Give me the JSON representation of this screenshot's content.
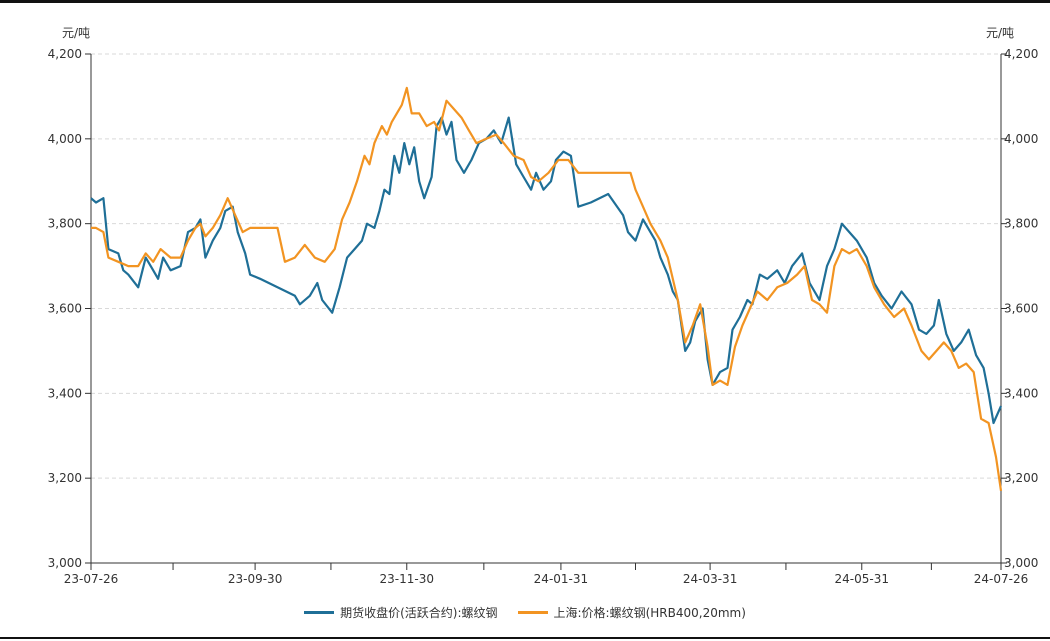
{
  "chart_data": {
    "type": "line",
    "y_unit_left": "元/吨",
    "y_unit_right": "元/吨",
    "ylim": [
      3000,
      4200
    ],
    "y_ticks": [
      "3,000",
      "3,200",
      "3,400",
      "3,600",
      "3,800",
      "4,000",
      "4,200"
    ],
    "y_tick_values": [
      3000,
      3200,
      3400,
      3600,
      3800,
      4000,
      4200
    ],
    "x_tick_labels": [
      "23-07-26",
      "23-09-30",
      "23-11-30",
      "24-01-31",
      "24-03-31",
      "24-05-31",
      "24-07-26"
    ],
    "x_tick_dates": [
      "2023-07-26",
      "2023-09-30",
      "2023-11-30",
      "2024-01-31",
      "2024-03-31",
      "2024-05-31",
      "2024-07-26"
    ],
    "xlim": [
      "2023-07-26",
      "2024-07-26"
    ],
    "grid": "horizontal dashed",
    "legend_position": "bottom",
    "series": [
      {
        "name": "期货收盘价(活跃合约):螺纹钢",
        "color": "#1f6f97",
        "points": [
          [
            "2023-07-26",
            3860
          ],
          [
            "2023-07-28",
            3850
          ],
          [
            "2023-07-31",
            3860
          ],
          [
            "2023-08-02",
            3740
          ],
          [
            "2023-08-06",
            3730
          ],
          [
            "2023-08-08",
            3690
          ],
          [
            "2023-08-10",
            3680
          ],
          [
            "2023-08-14",
            3650
          ],
          [
            "2023-08-17",
            3720
          ],
          [
            "2023-08-20",
            3690
          ],
          [
            "2023-08-22",
            3670
          ],
          [
            "2023-08-24",
            3720
          ],
          [
            "2023-08-27",
            3690
          ],
          [
            "2023-08-31",
            3700
          ],
          [
            "2023-09-03",
            3780
          ],
          [
            "2023-09-06",
            3790
          ],
          [
            "2023-09-08",
            3810
          ],
          [
            "2023-09-10",
            3720
          ],
          [
            "2023-09-13",
            3760
          ],
          [
            "2023-09-16",
            3790
          ],
          [
            "2023-09-18",
            3830
          ],
          [
            "2023-09-21",
            3840
          ],
          [
            "2023-09-23",
            3780
          ],
          [
            "2023-09-26",
            3730
          ],
          [
            "2023-09-28",
            3680
          ],
          [
            "2023-10-02",
            3670
          ],
          [
            "2023-10-09",
            3650
          ],
          [
            "2023-10-16",
            3630
          ],
          [
            "2023-10-18",
            3610
          ],
          [
            "2023-10-22",
            3630
          ],
          [
            "2023-10-25",
            3660
          ],
          [
            "2023-10-27",
            3620
          ],
          [
            "2023-10-31",
            3590
          ],
          [
            "2023-11-03",
            3650
          ],
          [
            "2023-11-06",
            3720
          ],
          [
            "2023-11-09",
            3740
          ],
          [
            "2023-11-12",
            3760
          ],
          [
            "2023-11-14",
            3800
          ],
          [
            "2023-11-17",
            3790
          ],
          [
            "2023-11-19",
            3830
          ],
          [
            "2023-11-21",
            3880
          ],
          [
            "2023-11-23",
            3870
          ],
          [
            "2023-11-25",
            3960
          ],
          [
            "2023-11-27",
            3920
          ],
          [
            "2023-11-29",
            3990
          ],
          [
            "2023-12-01",
            3940
          ],
          [
            "2023-12-03",
            3980
          ],
          [
            "2023-12-05",
            3900
          ],
          [
            "2023-12-07",
            3860
          ],
          [
            "2023-12-10",
            3910
          ],
          [
            "2023-12-12",
            4030
          ],
          [
            "2023-12-14",
            4050
          ],
          [
            "2023-12-16",
            4010
          ],
          [
            "2023-12-18",
            4040
          ],
          [
            "2023-12-20",
            3950
          ],
          [
            "2023-12-23",
            3920
          ],
          [
            "2023-12-26",
            3950
          ],
          [
            "2023-12-29",
            3990
          ],
          [
            "2024-01-01",
            4000
          ],
          [
            "2024-01-04",
            4020
          ],
          [
            "2024-01-07",
            3990
          ],
          [
            "2024-01-10",
            4050
          ],
          [
            "2024-01-13",
            3940
          ],
          [
            "2024-01-16",
            3910
          ],
          [
            "2024-01-19",
            3880
          ],
          [
            "2024-01-21",
            3920
          ],
          [
            "2024-01-24",
            3880
          ],
          [
            "2024-01-27",
            3900
          ],
          [
            "2024-01-29",
            3950
          ],
          [
            "2024-02-01",
            3970
          ],
          [
            "2024-02-04",
            3960
          ],
          [
            "2024-02-07",
            3840
          ],
          [
            "2024-02-12",
            3850
          ],
          [
            "2024-02-19",
            3870
          ],
          [
            "2024-02-25",
            3820
          ],
          [
            "2024-02-27",
            3780
          ],
          [
            "2024-03-01",
            3760
          ],
          [
            "2024-03-04",
            3810
          ],
          [
            "2024-03-07",
            3780
          ],
          [
            "2024-03-09",
            3760
          ],
          [
            "2024-03-11",
            3720
          ],
          [
            "2024-03-14",
            3680
          ],
          [
            "2024-03-16",
            3640
          ],
          [
            "2024-03-18",
            3620
          ],
          [
            "2024-03-21",
            3500
          ],
          [
            "2024-03-23",
            3520
          ],
          [
            "2024-03-25",
            3570
          ],
          [
            "2024-03-28",
            3600
          ],
          [
            "2024-03-30",
            3480
          ],
          [
            "2024-04-01",
            3420
          ],
          [
            "2024-04-04",
            3450
          ],
          [
            "2024-04-07",
            3460
          ],
          [
            "2024-04-09",
            3550
          ],
          [
            "2024-04-12",
            3580
          ],
          [
            "2024-04-15",
            3620
          ],
          [
            "2024-04-17",
            3610
          ],
          [
            "2024-04-20",
            3680
          ],
          [
            "2024-04-23",
            3670
          ],
          [
            "2024-04-27",
            3690
          ],
          [
            "2024-04-30",
            3660
          ],
          [
            "2024-05-03",
            3700
          ],
          [
            "2024-05-07",
            3730
          ],
          [
            "2024-05-10",
            3660
          ],
          [
            "2024-05-14",
            3620
          ],
          [
            "2024-05-17",
            3700
          ],
          [
            "2024-05-20",
            3740
          ],
          [
            "2024-05-23",
            3800
          ],
          [
            "2024-05-26",
            3780
          ],
          [
            "2024-05-29",
            3760
          ],
          [
            "2024-06-02",
            3720
          ],
          [
            "2024-06-05",
            3660
          ],
          [
            "2024-06-08",
            3630
          ],
          [
            "2024-06-12",
            3600
          ],
          [
            "2024-06-16",
            3640
          ],
          [
            "2024-06-20",
            3610
          ],
          [
            "2024-06-23",
            3550
          ],
          [
            "2024-06-26",
            3540
          ],
          [
            "2024-06-29",
            3560
          ],
          [
            "2024-07-01",
            3620
          ],
          [
            "2024-07-04",
            3540
          ],
          [
            "2024-07-07",
            3500
          ],
          [
            "2024-07-10",
            3520
          ],
          [
            "2024-07-13",
            3550
          ],
          [
            "2024-07-16",
            3490
          ],
          [
            "2024-07-19",
            3460
          ],
          [
            "2024-07-21",
            3400
          ],
          [
            "2024-07-23",
            3330
          ],
          [
            "2024-07-26",
            3370
          ]
        ]
      },
      {
        "name": "上海:价格:螺纹钢(HRB400,20mm)",
        "color": "#f29422",
        "points": [
          [
            "2023-07-26",
            3790
          ],
          [
            "2023-07-28",
            3790
          ],
          [
            "2023-07-31",
            3780
          ],
          [
            "2023-08-02",
            3720
          ],
          [
            "2023-08-06",
            3710
          ],
          [
            "2023-08-10",
            3700
          ],
          [
            "2023-08-14",
            3700
          ],
          [
            "2023-08-17",
            3730
          ],
          [
            "2023-08-20",
            3710
          ],
          [
            "2023-08-23",
            3740
          ],
          [
            "2023-08-27",
            3720
          ],
          [
            "2023-08-31",
            3720
          ],
          [
            "2023-09-03",
            3760
          ],
          [
            "2023-09-06",
            3790
          ],
          [
            "2023-09-08",
            3800
          ],
          [
            "2023-09-10",
            3770
          ],
          [
            "2023-09-13",
            3790
          ],
          [
            "2023-09-16",
            3820
          ],
          [
            "2023-09-19",
            3860
          ],
          [
            "2023-09-22",
            3820
          ],
          [
            "2023-09-25",
            3780
          ],
          [
            "2023-09-28",
            3790
          ],
          [
            "2023-10-02",
            3790
          ],
          [
            "2023-10-09",
            3790
          ],
          [
            "2023-10-12",
            3710
          ],
          [
            "2023-10-16",
            3720
          ],
          [
            "2023-10-20",
            3750
          ],
          [
            "2023-10-24",
            3720
          ],
          [
            "2023-10-28",
            3710
          ],
          [
            "2023-11-01",
            3740
          ],
          [
            "2023-11-04",
            3810
          ],
          [
            "2023-11-07",
            3850
          ],
          [
            "2023-11-10",
            3900
          ],
          [
            "2023-11-13",
            3960
          ],
          [
            "2023-11-15",
            3940
          ],
          [
            "2023-11-17",
            3990
          ],
          [
            "2023-11-20",
            4030
          ],
          [
            "2023-11-22",
            4010
          ],
          [
            "2023-11-24",
            4040
          ],
          [
            "2023-11-26",
            4060
          ],
          [
            "2023-11-28",
            4080
          ],
          [
            "2023-11-30",
            4120
          ],
          [
            "2023-12-02",
            4060
          ],
          [
            "2023-12-05",
            4060
          ],
          [
            "2023-12-08",
            4030
          ],
          [
            "2023-12-11",
            4040
          ],
          [
            "2023-12-13",
            4020
          ],
          [
            "2023-12-16",
            4090
          ],
          [
            "2023-12-19",
            4070
          ],
          [
            "2023-12-22",
            4050
          ],
          [
            "2023-12-25",
            4020
          ],
          [
            "2023-12-28",
            3990
          ],
          [
            "2024-01-01",
            4000
          ],
          [
            "2024-01-05",
            4010
          ],
          [
            "2024-01-08",
            3990
          ],
          [
            "2024-01-12",
            3960
          ],
          [
            "2024-01-16",
            3950
          ],
          [
            "2024-01-19",
            3910
          ],
          [
            "2024-01-22",
            3900
          ],
          [
            "2024-01-26",
            3920
          ],
          [
            "2024-01-30",
            3950
          ],
          [
            "2024-02-03",
            3950
          ],
          [
            "2024-02-07",
            3920
          ],
          [
            "2024-02-14",
            3920
          ],
          [
            "2024-02-21",
            3920
          ],
          [
            "2024-02-28",
            3920
          ],
          [
            "2024-03-01",
            3880
          ],
          [
            "2024-03-04",
            3840
          ],
          [
            "2024-03-07",
            3800
          ],
          [
            "2024-03-11",
            3760
          ],
          [
            "2024-03-14",
            3720
          ],
          [
            "2024-03-18",
            3620
          ],
          [
            "2024-03-21",
            3520
          ],
          [
            "2024-03-24",
            3560
          ],
          [
            "2024-03-27",
            3610
          ],
          [
            "2024-03-30",
            3510
          ],
          [
            "2024-04-01",
            3420
          ],
          [
            "2024-04-04",
            3430
          ],
          [
            "2024-04-07",
            3420
          ],
          [
            "2024-04-10",
            3510
          ],
          [
            "2024-04-13",
            3560
          ],
          [
            "2024-04-16",
            3600
          ],
          [
            "2024-04-19",
            3640
          ],
          [
            "2024-04-23",
            3620
          ],
          [
            "2024-04-27",
            3650
          ],
          [
            "2024-05-01",
            3660
          ],
          [
            "2024-05-05",
            3680
          ],
          [
            "2024-05-08",
            3700
          ],
          [
            "2024-05-11",
            3620
          ],
          [
            "2024-05-14",
            3610
          ],
          [
            "2024-05-17",
            3590
          ],
          [
            "2024-05-20",
            3700
          ],
          [
            "2024-05-23",
            3740
          ],
          [
            "2024-05-26",
            3730
          ],
          [
            "2024-05-29",
            3740
          ],
          [
            "2024-06-02",
            3700
          ],
          [
            "2024-06-05",
            3650
          ],
          [
            "2024-06-09",
            3610
          ],
          [
            "2024-06-13",
            3580
          ],
          [
            "2024-06-17",
            3600
          ],
          [
            "2024-06-20",
            3560
          ],
          [
            "2024-06-24",
            3500
          ],
          [
            "2024-06-27",
            3480
          ],
          [
            "2024-06-30",
            3500
          ],
          [
            "2024-07-03",
            3520
          ],
          [
            "2024-07-06",
            3500
          ],
          [
            "2024-07-09",
            3460
          ],
          [
            "2024-07-12",
            3470
          ],
          [
            "2024-07-15",
            3450
          ],
          [
            "2024-07-18",
            3340
          ],
          [
            "2024-07-21",
            3330
          ],
          [
            "2024-07-24",
            3250
          ],
          [
            "2024-07-26",
            3170
          ]
        ]
      }
    ]
  }
}
